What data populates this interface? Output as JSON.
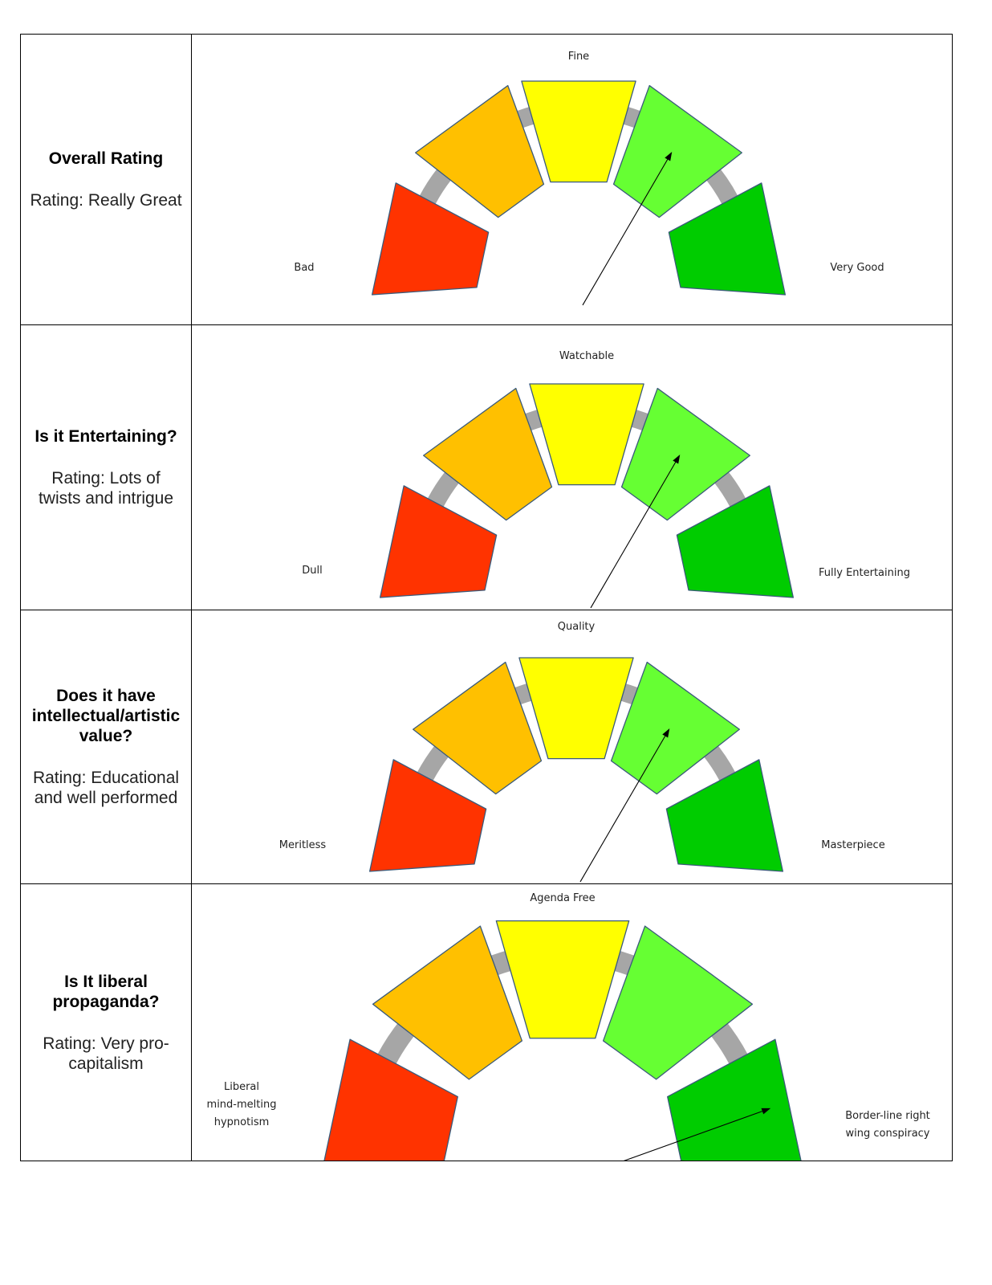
{
  "colors": {
    "segments": [
      "#ff3300",
      "#ffc000",
      "#ffff00",
      "#66ff33",
      "#00cc00"
    ],
    "track": "#a6a6a6",
    "border": "#000000"
  },
  "rows": [
    {
      "question": "Overall Rating",
      "answer": "Rating: Really Great",
      "gauge": {
        "left_label": [
          "Bad"
        ],
        "top_label": [
          "Fine"
        ],
        "right_label": [
          "Very Good"
        ]
      },
      "pointer": {
        "segment": 4,
        "label": "Really Great"
      }
    },
    {
      "question": "Is it Entertaining?",
      "answer": "Rating: Lots of twists and intrigue",
      "gauge": {
        "left_label": [
          "Dull"
        ],
        "top_label": [
          "Watchable"
        ],
        "right_label": [
          "Fully Entertaining"
        ]
      },
      "pointer": {
        "segment": 4,
        "label": "Lots of twists and intrigue"
      }
    },
    {
      "question": "Does it have intellectual/artistic value?",
      "answer": "Rating: Educational and well performed",
      "gauge": {
        "left_label": [
          "Meritless"
        ],
        "top_label": [
          "Quality"
        ],
        "right_label": [
          "Masterpiece"
        ]
      },
      "pointer": {
        "segment": 4,
        "label": "Educational and well performed"
      }
    },
    {
      "question": "Is It liberal propaganda?",
      "answer": "Rating: Very pro-capitalism",
      "gauge": {
        "left_label": [
          "Liberal",
          "mind-melting",
          "hypnotism"
        ],
        "top_label": [
          "Agenda Free"
        ],
        "right_label": [
          "Border-line right",
          "wing conspiracy"
        ]
      },
      "pointer": {
        "segment": 5,
        "label": "Very pro-capitalism"
      }
    }
  ]
}
